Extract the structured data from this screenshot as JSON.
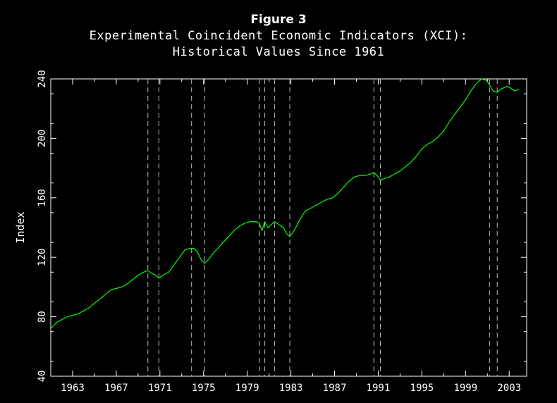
{
  "chart_data": {
    "type": "line",
    "title": "Figure 3",
    "subtitle": [
      "Experimental Coincident Economic Indicators (XCI):",
      "Historical Values Since 1961"
    ],
    "ylabel": "Index",
    "xlabel": "",
    "xlim": [
      1961,
      2004.6
    ],
    "ylim": [
      40,
      240
    ],
    "x_ticks": [
      1963,
      1967,
      1971,
      1975,
      1979,
      1983,
      1987,
      1991,
      1995,
      1999,
      2003
    ],
    "y_ticks": [
      40,
      80,
      120,
      160,
      200,
      240
    ],
    "grid": false,
    "line_color": "#00ff00",
    "recession_line_color": "#bbbbbb",
    "recession_lines": [
      1969.9,
      1970.9,
      1973.9,
      1975.1,
      1980.1,
      1980.6,
      1981.5,
      1982.9,
      1990.6,
      1991.2,
      2001.2,
      2001.9
    ],
    "series": [
      {
        "x": [
          1961.0,
          1961.5,
          1962.0,
          1962.5,
          1963.0,
          1963.5,
          1964.0,
          1964.5,
          1965.0,
          1965.5,
          1966.0,
          1966.5,
          1967.0,
          1967.5,
          1968.0,
          1968.5,
          1969.0,
          1969.5,
          1969.9,
          1970.3,
          1970.6,
          1970.9,
          1971.3,
          1971.8,
          1972.3,
          1972.8,
          1973.3,
          1973.8,
          1974.1,
          1974.4,
          1974.8,
          1975.1,
          1975.4,
          1975.8,
          1976.3,
          1976.8,
          1977.3,
          1977.8,
          1978.3,
          1978.8,
          1979.3,
          1979.8,
          1980.1,
          1980.35,
          1980.6,
          1980.9,
          1981.2,
          1981.5,
          1981.9,
          1982.3,
          1982.6,
          1982.9,
          1983.3,
          1983.8,
          1984.3,
          1984.8,
          1985.3,
          1985.8,
          1986.3,
          1986.8,
          1987.3,
          1987.8,
          1988.3,
          1988.8,
          1989.3,
          1989.8,
          1990.3,
          1990.6,
          1990.9,
          1991.2,
          1991.6,
          1992.0,
          1992.5,
          1993.0,
          1993.5,
          1994.0,
          1994.5,
          1995.0,
          1995.5,
          1996.0,
          1996.5,
          1997.0,
          1997.5,
          1998.0,
          1998.5,
          1999.0,
          1999.5,
          2000.0,
          2000.5,
          2000.9,
          2001.2,
          2001.5,
          2001.9,
          2002.2,
          2002.5,
          2002.8,
          2003.1,
          2003.5,
          2003.9
        ],
        "values": [
          72,
          76,
          78,
          80,
          81,
          82,
          84,
          86,
          89,
          92,
          95,
          98,
          99,
          100,
          102,
          105,
          108,
          110,
          111,
          109,
          108,
          106,
          108,
          110,
          115,
          120,
          125,
          126,
          126,
          124,
          118,
          116,
          118,
          122,
          126,
          130,
          134,
          138,
          141,
          143,
          144,
          144,
          143,
          138,
          144,
          140,
          142,
          144,
          142,
          140,
          136,
          134,
          138,
          145,
          151,
          153,
          155,
          157,
          159,
          160,
          163,
          167,
          171,
          174,
          175,
          175,
          176,
          177,
          175,
          172,
          173,
          174,
          176,
          178,
          181,
          184,
          188,
          193,
          196,
          198,
          201,
          205,
          211,
          216,
          221,
          226,
          232,
          237,
          240,
          239,
          236,
          232,
          231,
          233,
          234,
          235,
          234,
          232,
          233
        ]
      }
    ]
  }
}
